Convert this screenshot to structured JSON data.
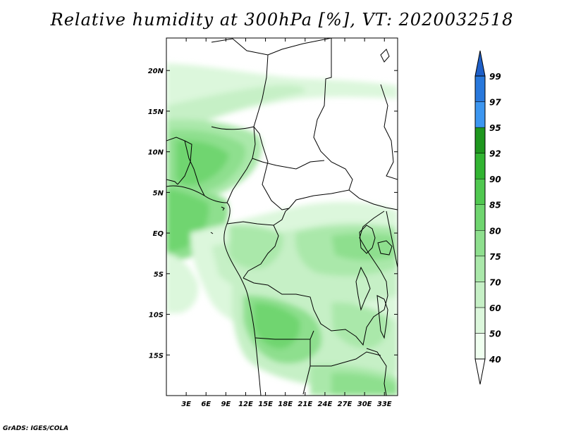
{
  "title": "Relative humidity at 300hPa [%], VT: 2020032518",
  "credit": "GrADS: IGES/COLA",
  "map": {
    "lon_range": [
      0,
      35
    ],
    "lat_range": [
      -20,
      24
    ],
    "lon_ticks": [
      "3E",
      "6E",
      "9E",
      "12E",
      "15E",
      "18E",
      "21E",
      "24E",
      "27E",
      "30E",
      "33E"
    ],
    "lat_ticks": [
      "20N",
      "15N",
      "10N",
      "5N",
      "EQ",
      "5S",
      "10S",
      "15S"
    ],
    "field": "Relative humidity",
    "level": "300hPa",
    "unit": "%"
  },
  "colorbar": {
    "levels": [
      "40",
      "50",
      "60",
      "70",
      "75",
      "80",
      "85",
      "90",
      "92",
      "95",
      "97",
      "99"
    ],
    "colors": [
      "#f0fff0",
      "#dcf7dc",
      "#c6f0c6",
      "#aae8aa",
      "#8edf8e",
      "#6fd56f",
      "#50c850",
      "#32b432",
      "#1e961e",
      "#3c96f0",
      "#2878dc",
      "#1e5fc8"
    ],
    "under_color": "#ffffff",
    "over_color": "#1e5fc8"
  }
}
